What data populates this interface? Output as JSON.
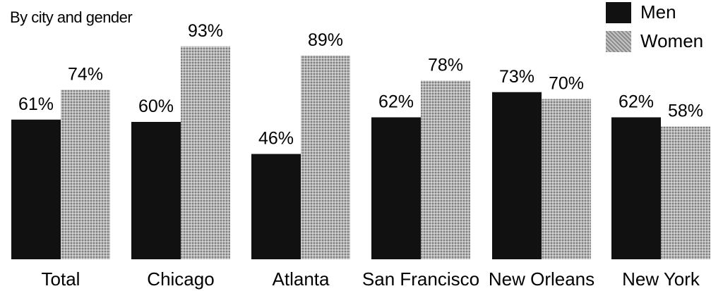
{
  "chart_data": {
    "type": "bar",
    "subtitle": "By city and gender",
    "categories": [
      "Total",
      "Chicago",
      "Atlanta",
      "San Francisco",
      "New Orleans",
      "New York"
    ],
    "series": [
      {
        "name": "Men",
        "values": [
          61,
          60,
          46,
          62,
          73,
          62
        ],
        "labels": [
          "61%",
          "60%",
          "46%",
          "62%",
          "73%",
          "62%"
        ],
        "color": "#111111"
      },
      {
        "name": "Women",
        "values": [
          74,
          93,
          89,
          78,
          70,
          58
        ],
        "labels": [
          "74%",
          "93%",
          "89%",
          "78%",
          "70%",
          "58%"
        ],
        "color": "#9a9a9a"
      }
    ],
    "ylim": [
      0,
      100
    ],
    "grid": false,
    "legend": "top-right"
  }
}
